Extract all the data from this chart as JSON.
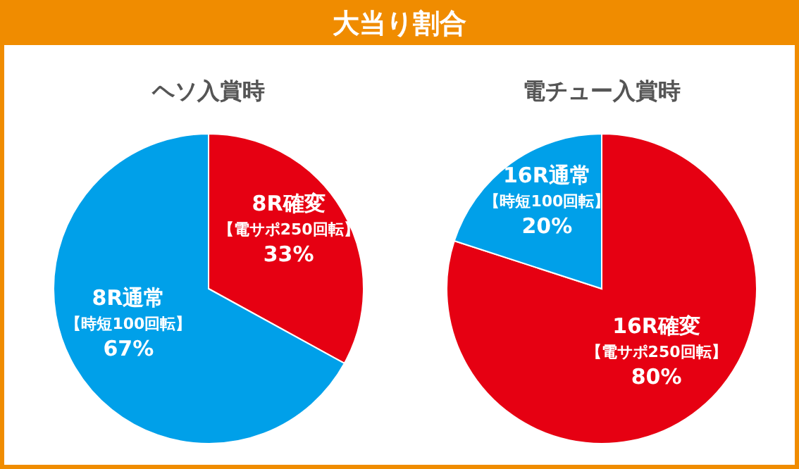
{
  "chart_data": [
    {
      "type": "pie",
      "title": "ヘソ入賞時",
      "annotations": [
        "大当り割合"
      ],
      "categories": [
        "8R確変【電サポ250回転】",
        "8R通常【時短100回転】"
      ],
      "values": [
        33,
        67
      ],
      "colors": [
        "#e60012",
        "#00a0e9"
      ],
      "value_labels": [
        "33%",
        "67%"
      ]
    },
    {
      "type": "pie",
      "title": "電チュー入賞時",
      "categories": [
        "16R確変【電サポ250回転】",
        "16R通常【時短100回転】"
      ],
      "values": [
        80,
        20
      ],
      "colors": [
        "#e60012",
        "#00a0e9"
      ],
      "value_labels": [
        "80%",
        "20%"
      ]
    }
  ]
}
